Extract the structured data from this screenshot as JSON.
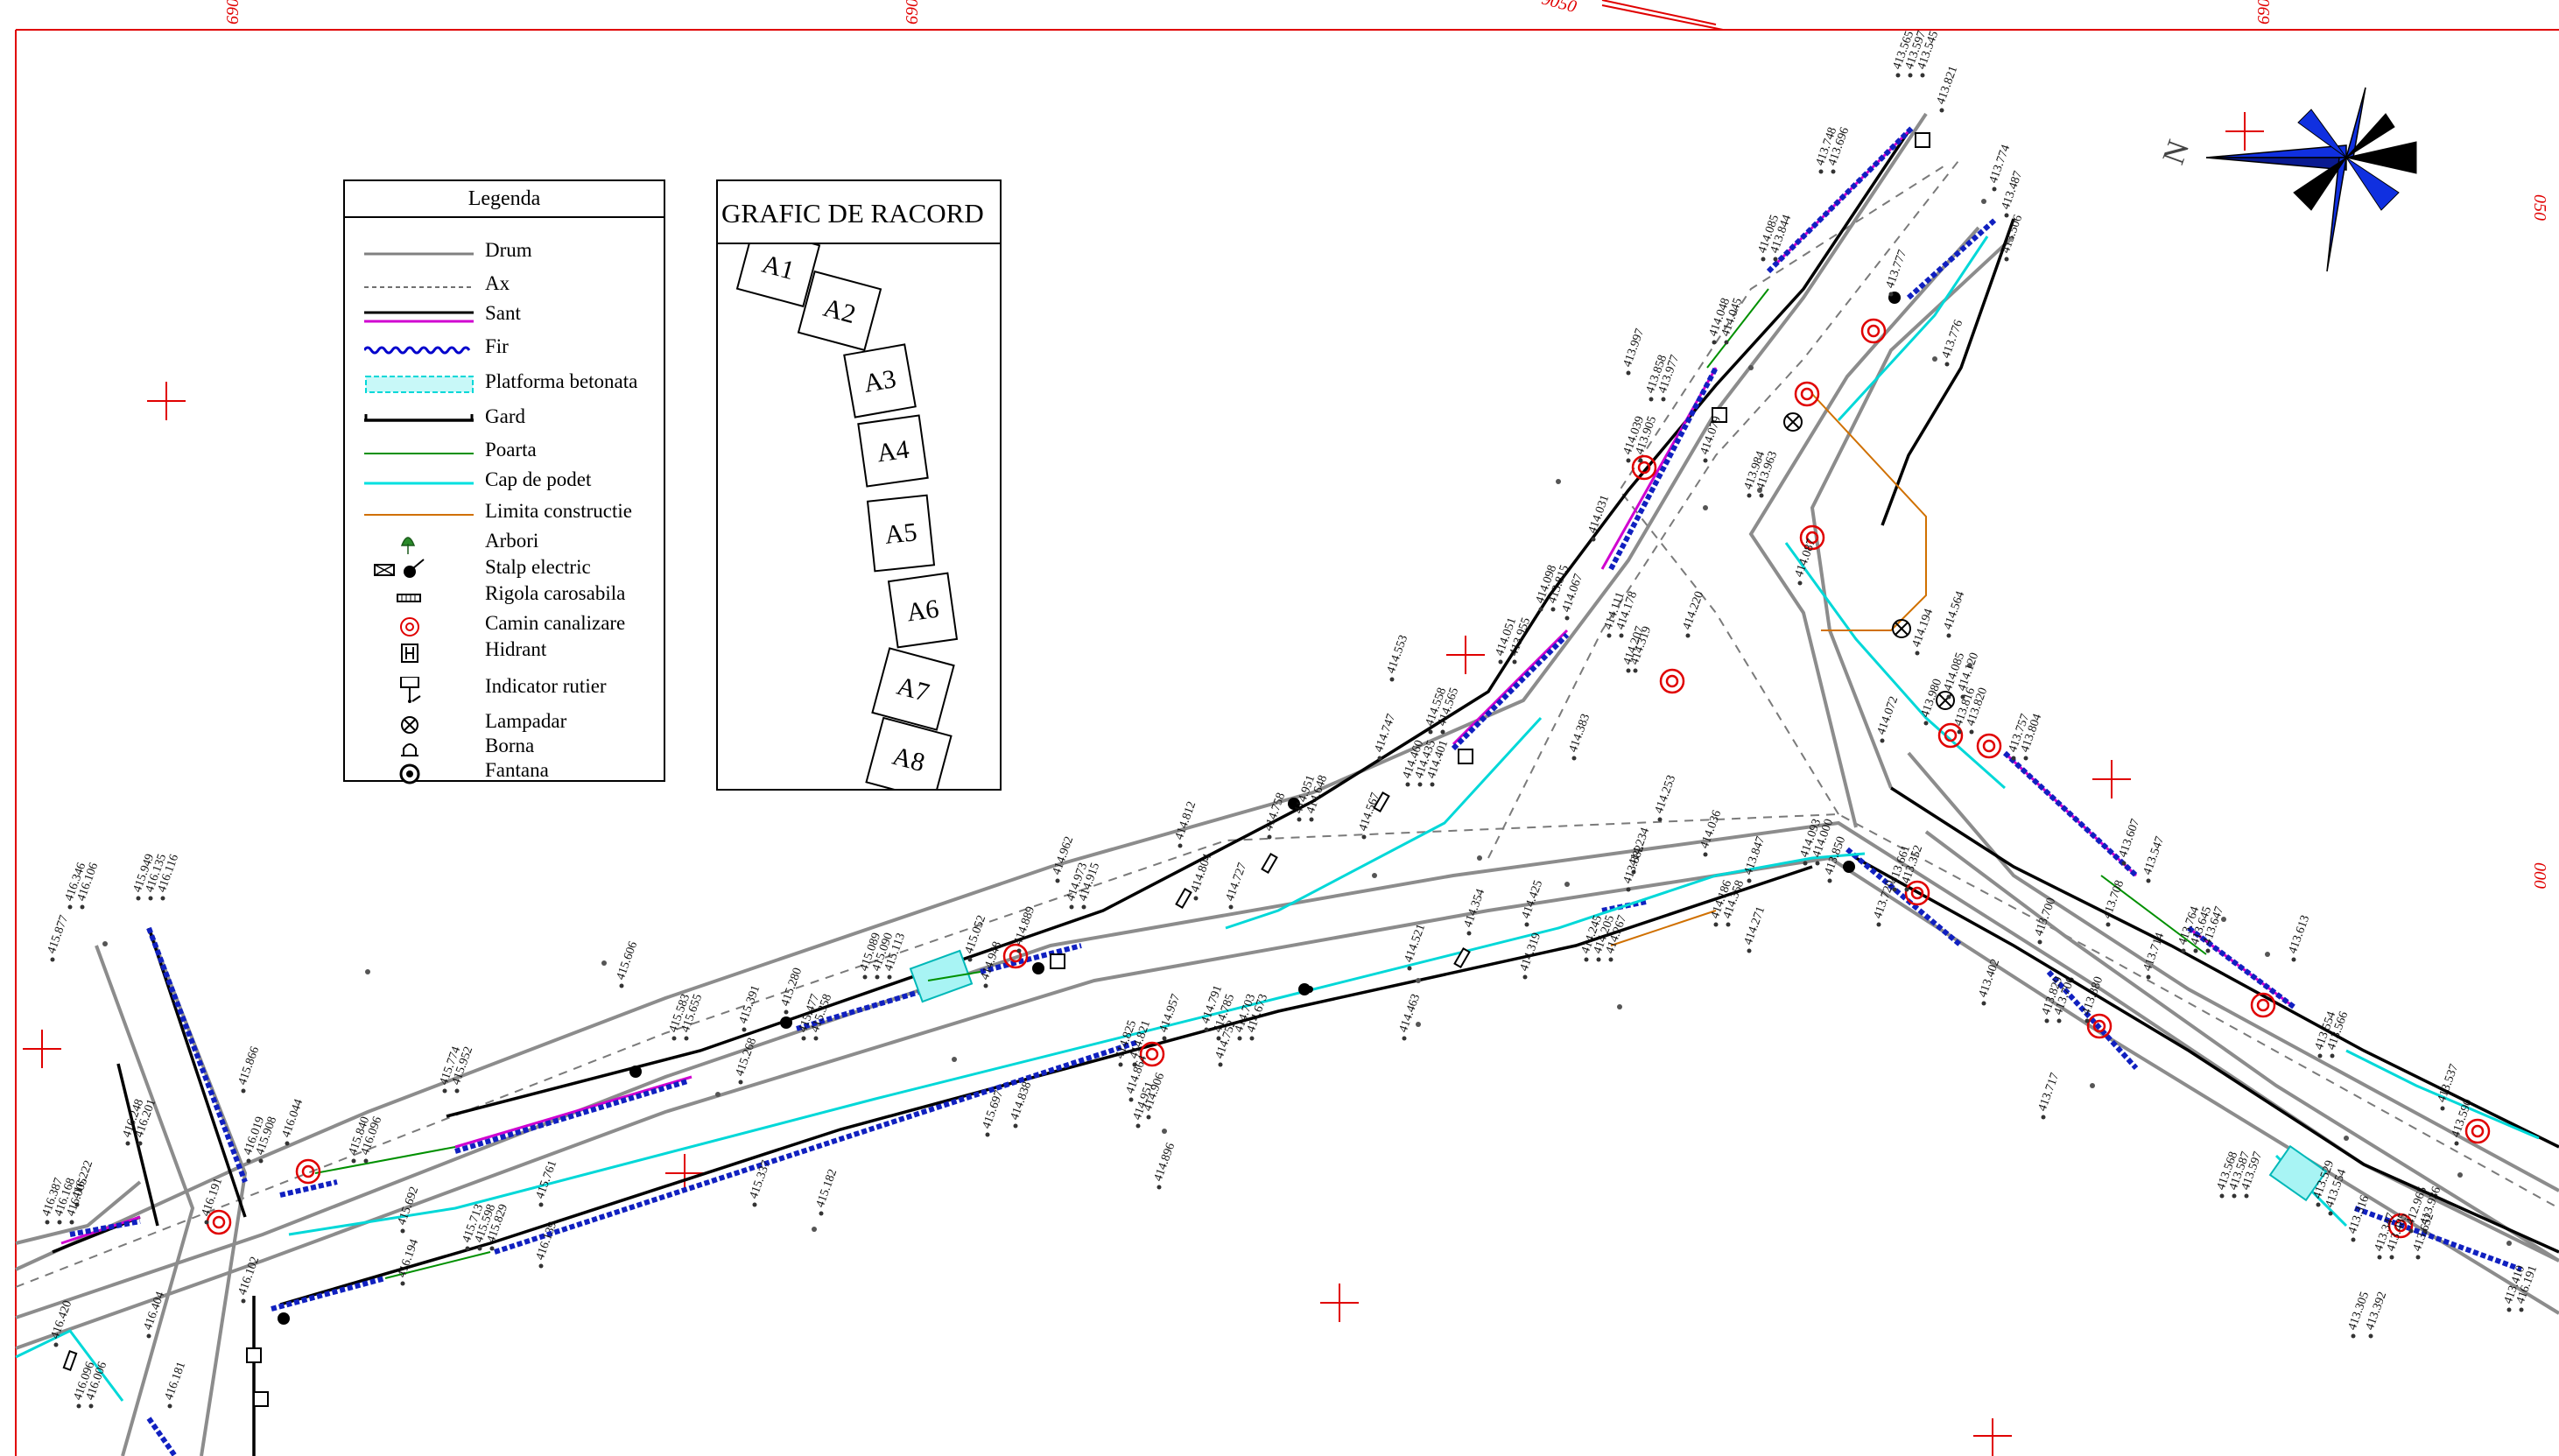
{
  "grid_labels": {
    "top": [
      "690",
      "690",
      "9050",
      "690"
    ],
    "right": [
      "050",
      "000"
    ]
  },
  "north_label": "N",
  "legend": {
    "title": "Legenda",
    "items": [
      {
        "key": "drum",
        "label": "Drum",
        "color": "#808080"
      },
      {
        "key": "ax",
        "label": "Ax",
        "color": "#707070"
      },
      {
        "key": "sant",
        "label": "Sant",
        "color": "#d000d0"
      },
      {
        "key": "fir",
        "label": "Fir",
        "color": "#0000cc"
      },
      {
        "key": "platforma",
        "label": "Platforma betonata",
        "color": "#00d8d8"
      },
      {
        "key": "gard",
        "label": "Gard",
        "color": "#000000"
      },
      {
        "key": "poarta",
        "label": "Poarta",
        "color": "#009000"
      },
      {
        "key": "cap",
        "label": "Cap de podet",
        "color": "#00e0e0"
      },
      {
        "key": "limita",
        "label": "Limita constructie",
        "color": "#d07000"
      },
      {
        "key": "arbori",
        "label": "Arbori",
        "color": "#2a8a2a"
      },
      {
        "key": "stalp",
        "label": "Stalp electric",
        "color": "#000000"
      },
      {
        "key": "rigola",
        "label": "Rigola carosabila",
        "color": "#000000"
      },
      {
        "key": "camin",
        "label": "Camin canalizare",
        "color": "#e00000"
      },
      {
        "key": "hidrant",
        "label": "Hidrant",
        "color": "#000000"
      },
      {
        "key": "indicator",
        "label": "Indicator rutier",
        "color": "#000000"
      },
      {
        "key": "lampadar",
        "label": "Lampadar",
        "color": "#000000"
      },
      {
        "key": "borna",
        "label": "Borna",
        "color": "#000000"
      },
      {
        "key": "fantana",
        "label": "Fantana",
        "color": "#000000"
      }
    ]
  },
  "racord": {
    "title": "GRAFIC DE RACORD",
    "sheets": [
      "A1",
      "A2",
      "A3",
      "A4",
      "A5",
      "A6",
      "A7",
      "A8"
    ]
  },
  "elevations": [
    {
      "t": "413.565"
    },
    {
      "t": "413.597"
    },
    {
      "t": "413.545"
    },
    {
      "t": "413.821"
    },
    {
      "t": "413.748"
    },
    {
      "t": "413.696"
    },
    {
      "t": "413.774"
    },
    {
      "t": "413.487"
    },
    {
      "t": "413.506"
    },
    {
      "t": "414.085"
    },
    {
      "t": "413.844"
    },
    {
      "t": "413.777"
    },
    {
      "t": "413.776"
    },
    {
      "t": "413.997"
    },
    {
      "t": "414.048"
    },
    {
      "t": "414.045"
    },
    {
      "t": "413.858"
    },
    {
      "t": "413.977"
    },
    {
      "t": "414.039"
    },
    {
      "t": "413.905"
    },
    {
      "t": "414.079"
    },
    {
      "t": "413.984"
    },
    {
      "t": "413.963"
    },
    {
      "t": "414.031"
    },
    {
      "t": "414.098"
    },
    {
      "t": "413.815"
    },
    {
      "t": "414.067"
    },
    {
      "t": "414.111"
    },
    {
      "t": "414.178"
    },
    {
      "t": "414.319"
    },
    {
      "t": "414.220"
    },
    {
      "t": "414.564"
    },
    {
      "t": "414.194"
    },
    {
      "t": "414.087"
    },
    {
      "t": "414.051"
    },
    {
      "t": "413.955"
    },
    {
      "t": "414.207"
    },
    {
      "t": "414.553"
    },
    {
      "t": "414.558"
    },
    {
      "t": "414.565"
    },
    {
      "t": "414.383"
    },
    {
      "t": "414.747"
    },
    {
      "t": "414.460"
    },
    {
      "t": "414.435"
    },
    {
      "t": "414.401"
    },
    {
      "t": "414.085"
    },
    {
      "t": "414.120"
    },
    {
      "t": "413.980"
    },
    {
      "t": "413.816"
    },
    {
      "t": "413.820"
    },
    {
      "t": "414.072"
    },
    {
      "t": "413.757"
    },
    {
      "t": "413.804"
    },
    {
      "t": "414.758"
    },
    {
      "t": "414.951"
    },
    {
      "t": "414.648"
    },
    {
      "t": "414.567"
    },
    {
      "t": "414.253"
    },
    {
      "t": "414.234"
    },
    {
      "t": "414.036"
    },
    {
      "t": "413.847"
    },
    {
      "t": "414.093"
    },
    {
      "t": "414.000"
    },
    {
      "t": "413.850"
    },
    {
      "t": "413.661"
    },
    {
      "t": "413.352"
    },
    {
      "t": "413.720"
    },
    {
      "t": "413.607"
    },
    {
      "t": "413.547"
    },
    {
      "t": "413.764"
    },
    {
      "t": "413.645"
    },
    {
      "t": "413.647"
    },
    {
      "t": "413.613"
    },
    {
      "t": "414.812"
    },
    {
      "t": "414.962"
    },
    {
      "t": "414.973"
    },
    {
      "t": "414.915"
    },
    {
      "t": "414.804"
    },
    {
      "t": "414.727"
    },
    {
      "t": "414.889"
    },
    {
      "t": "414.425"
    },
    {
      "t": "414.245"
    },
    {
      "t": "414.205"
    },
    {
      "t": "414.267"
    },
    {
      "t": "413.882"
    },
    {
      "t": "414.186"
    },
    {
      "t": "414.358"
    },
    {
      "t": "414.271"
    },
    {
      "t": "413.708"
    },
    {
      "t": "413.700"
    },
    {
      "t": "413.714"
    },
    {
      "t": "413.402"
    },
    {
      "t": "413.829"
    },
    {
      "t": "413.706"
    },
    {
      "t": "413.880"
    },
    {
      "t": "415.052"
    },
    {
      "t": "415.089"
    },
    {
      "t": "415.090"
    },
    {
      "t": "415.113"
    },
    {
      "t": "414.948"
    },
    {
      "t": "414.354"
    },
    {
      "t": "414.521"
    },
    {
      "t": "414.319"
    },
    {
      "t": "414.463"
    },
    {
      "t": "413.717"
    },
    {
      "t": "413.554"
    },
    {
      "t": "413.566"
    },
    {
      "t": "413.537"
    },
    {
      "t": "413.590"
    },
    {
      "t": "413.936"
    },
    {
      "t": "415.606"
    },
    {
      "t": "415.391"
    },
    {
      "t": "415.280"
    },
    {
      "t": "415.477"
    },
    {
      "t": "415.358"
    },
    {
      "t": "415.583"
    },
    {
      "t": "415.655"
    },
    {
      "t": "414.957"
    },
    {
      "t": "414.791"
    },
    {
      "t": "414.785"
    },
    {
      "t": "414.752"
    },
    {
      "t": "414.821"
    },
    {
      "t": "414.825"
    },
    {
      "t": "414.864"
    },
    {
      "t": "414.906"
    },
    {
      "t": "414.951"
    },
    {
      "t": "414.896"
    },
    {
      "t": "414.703"
    },
    {
      "t": "414.673"
    },
    {
      "t": "413.568"
    },
    {
      "t": "413.587"
    },
    {
      "t": "413.597"
    },
    {
      "t": "413.529"
    },
    {
      "t": "413.554"
    },
    {
      "t": "413.316"
    },
    {
      "t": "413.347"
    },
    {
      "t": "413.485"
    },
    {
      "t": "413.652"
    },
    {
      "t": "412.965"
    },
    {
      "t": "413.392"
    },
    {
      "t": "413.305"
    },
    {
      "t": "413.410"
    },
    {
      "t": "416.191"
    },
    {
      "t": "415.949"
    },
    {
      "t": "416.135"
    },
    {
      "t": "416.116"
    },
    {
      "t": "416.346"
    },
    {
      "t": "416.106"
    },
    {
      "t": "415.877"
    },
    {
      "t": "415.774"
    },
    {
      "t": "415.952"
    },
    {
      "t": "416.044"
    },
    {
      "t": "416.019"
    },
    {
      "t": "415.908"
    },
    {
      "t": "415.840"
    },
    {
      "t": "416.096"
    },
    {
      "t": "415.866"
    },
    {
      "t": "415.268"
    },
    {
      "t": "415.182"
    },
    {
      "t": "414.838"
    },
    {
      "t": "415.337"
    },
    {
      "t": "415.761"
    },
    {
      "t": "415.697"
    },
    {
      "t": "415.692"
    },
    {
      "t": "415.713"
    },
    {
      "t": "415.598"
    },
    {
      "t": "415.829"
    },
    {
      "t": "416.139"
    },
    {
      "t": "416.194"
    },
    {
      "t": "416.191"
    },
    {
      "t": "416.248"
    },
    {
      "t": "416.201"
    },
    {
      "t": "416.222"
    },
    {
      "t": "416.387"
    },
    {
      "t": "416.168"
    },
    {
      "t": "416.005"
    },
    {
      "t": "416.420"
    },
    {
      "t": "416.404"
    },
    {
      "t": "416.102"
    },
    {
      "t": "416.096"
    },
    {
      "t": "416.006"
    },
    {
      "t": "416.181"
    }
  ]
}
